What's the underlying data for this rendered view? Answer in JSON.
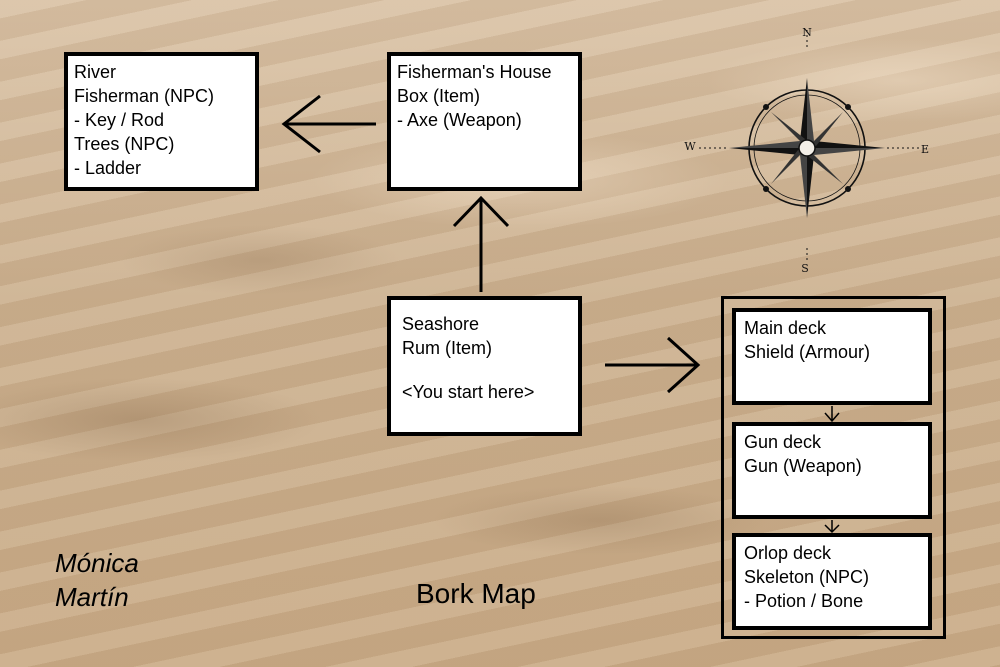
{
  "rooms": {
    "river": [
      "River",
      "Fisherman (NPC)",
      "- Key / Rod",
      "Trees (NPC)",
      "- Ladder"
    ],
    "fishermans_house": [
      "Fisherman's House",
      "Box (Item)",
      "- Axe (Weapon)"
    ],
    "seashore": [
      "Seashore",
      "Rum (Item)",
      "",
      "<You start here>"
    ],
    "main_deck": [
      "Main deck",
      "Shield (Armour)"
    ],
    "gun_deck": [
      "Gun deck",
      "Gun (Weapon)"
    ],
    "orlop_deck": [
      "Orlop deck",
      "Skeleton (NPC)",
      "- Potion / Bone"
    ]
  },
  "compass": {
    "north": "N",
    "south": "S",
    "east": "E",
    "west": "W"
  },
  "title": "Bork Map",
  "author": [
    "Mónica",
    "Martín"
  ]
}
